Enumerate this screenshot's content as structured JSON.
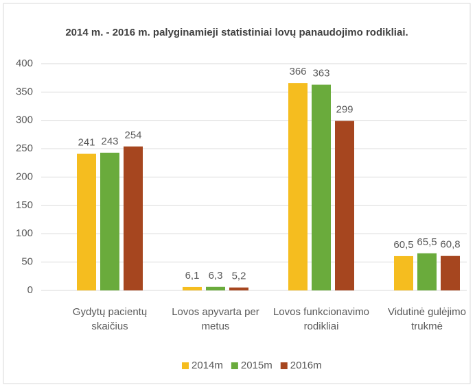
{
  "chart_data": {
    "type": "bar",
    "title": "2014 m. - 2016 m. palyginamieji statistiniai lovų panaudojimo rodikliai.",
    "categories": [
      "Gydytų pacientų skaičius",
      "Lovos apyvarta per metus",
      "Lovos funkcionavimo rodikliai",
      "Vidutinė gulėjimo trukmė"
    ],
    "series": [
      {
        "name": "2014m",
        "color": "#f5bd1f",
        "values": [
          241,
          6.1,
          366,
          60.5
        ],
        "value_labels": [
          "241",
          "6,1",
          "366",
          "60,5"
        ]
      },
      {
        "name": "2015m",
        "color": "#6aab3c",
        "values": [
          243,
          6.3,
          363,
          65.5
        ],
        "value_labels": [
          "243",
          "6,3",
          "363",
          "65,5"
        ]
      },
      {
        "name": "2016m",
        "color": "#a6461f",
        "values": [
          254,
          5.2,
          299,
          60.8
        ],
        "value_labels": [
          "254",
          "5,2",
          "299",
          "60,8"
        ]
      }
    ],
    "ylim": [
      0,
      400
    ],
    "yticks": [
      0,
      50,
      100,
      150,
      200,
      250,
      300,
      350,
      400
    ],
    "grid": true,
    "legend": "bottom"
  }
}
